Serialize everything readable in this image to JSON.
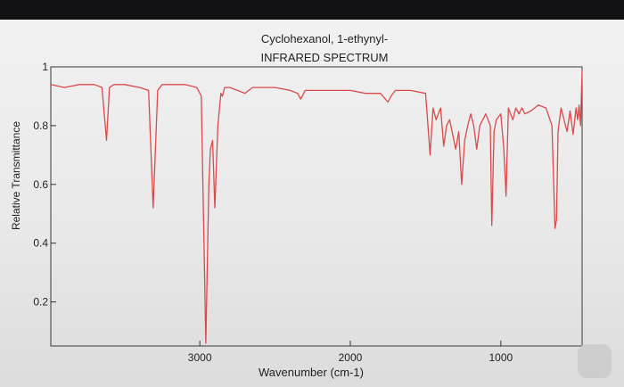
{
  "chart_data": {
    "type": "line",
    "title": "Cyclohexanol, 1-ethynyl-",
    "subtitle": "INFRARED SPECTRUM",
    "xlabel": "Wavenumber (cm-1)",
    "ylabel": "Relative Transmittance",
    "xlim": [
      3990,
      460
    ],
    "ylim": [
      0.05,
      1.0
    ],
    "x_ticks": [
      3000,
      2000,
      1000
    ],
    "x_tick_labels": [
      "3000",
      "2000",
      "1000"
    ],
    "y_ticks": [
      0.2,
      0.4,
      0.6,
      0.8,
      1.0
    ],
    "y_tick_labels": [
      "0.2",
      "0.4",
      "0.6",
      "0.8",
      "1"
    ],
    "grid": false,
    "series": [
      {
        "color": "#d94a4a",
        "x": [
          3990,
          3900,
          3800,
          3700,
          3650,
          3620,
          3600,
          3570,
          3500,
          3400,
          3340,
          3310,
          3280,
          3250,
          3200,
          3100,
          3020,
          2990,
          2960,
          2940,
          2930,
          2915,
          2900,
          2880,
          2860,
          2850,
          2835,
          2800,
          2700,
          2650,
          2600,
          2500,
          2400,
          2350,
          2330,
          2300,
          2200,
          2100,
          2000,
          1900,
          1800,
          1750,
          1730,
          1700,
          1600,
          1500,
          1470,
          1450,
          1430,
          1400,
          1380,
          1360,
          1340,
          1300,
          1280,
          1260,
          1240,
          1220,
          1200,
          1180,
          1160,
          1140,
          1100,
          1070,
          1060,
          1045,
          1030,
          1000,
          980,
          965,
          950,
          920,
          900,
          880,
          860,
          840,
          800,
          750,
          700,
          660,
          640,
          630,
          620,
          600,
          560,
          540,
          520,
          500,
          490,
          480,
          470,
          460
        ],
        "y": [
          0.94,
          0.93,
          0.94,
          0.94,
          0.93,
          0.75,
          0.93,
          0.94,
          0.94,
          0.93,
          0.92,
          0.52,
          0.92,
          0.94,
          0.94,
          0.94,
          0.93,
          0.9,
          0.06,
          0.6,
          0.72,
          0.75,
          0.52,
          0.8,
          0.91,
          0.9,
          0.93,
          0.93,
          0.91,
          0.93,
          0.93,
          0.93,
          0.92,
          0.91,
          0.89,
          0.92,
          0.92,
          0.92,
          0.92,
          0.91,
          0.91,
          0.88,
          0.9,
          0.92,
          0.92,
          0.91,
          0.7,
          0.86,
          0.82,
          0.86,
          0.73,
          0.8,
          0.82,
          0.72,
          0.78,
          0.6,
          0.75,
          0.8,
          0.84,
          0.8,
          0.72,
          0.8,
          0.84,
          0.8,
          0.46,
          0.78,
          0.82,
          0.84,
          0.72,
          0.56,
          0.86,
          0.82,
          0.86,
          0.84,
          0.86,
          0.84,
          0.85,
          0.87,
          0.86,
          0.8,
          0.45,
          0.48,
          0.78,
          0.86,
          0.78,
          0.85,
          0.77,
          0.86,
          0.82,
          0.87,
          0.8,
          0.99
        ]
      }
    ]
  }
}
